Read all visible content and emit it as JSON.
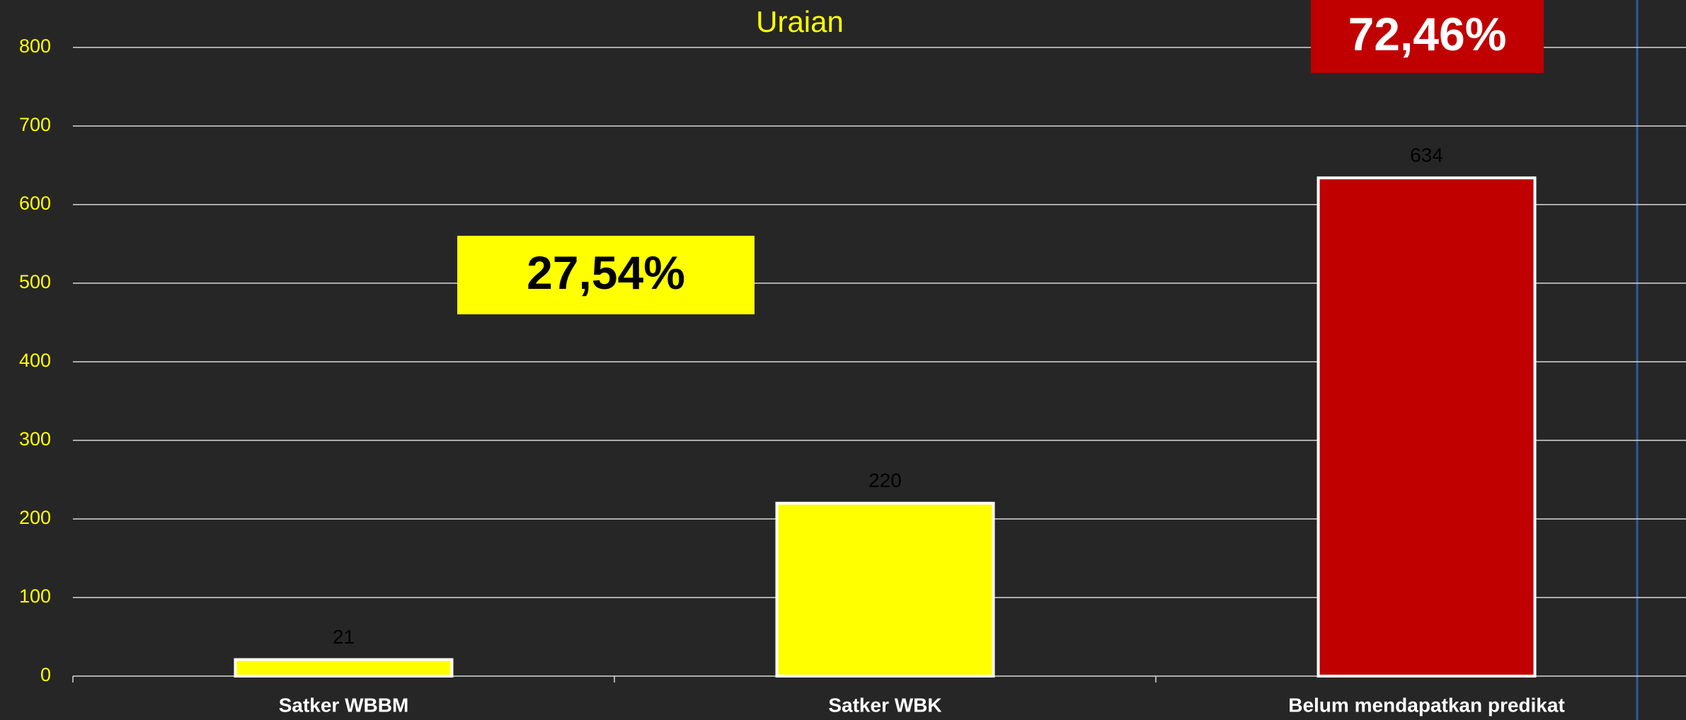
{
  "chart_data": {
    "type": "bar",
    "title": "Uraian",
    "categories": [
      "Satker WBBM",
      "Satker WBK",
      "Belum mendapatkan predikat"
    ],
    "values": [
      21,
      220,
      634
    ],
    "colors": [
      "#ffff00",
      "#ffff00",
      "#c00000"
    ],
    "ylim": [
      0,
      800
    ],
    "yticks": [
      0,
      100,
      200,
      300,
      400,
      500,
      600,
      700,
      800
    ],
    "grid": true,
    "annotations": [
      "27,54%",
      "72,46%"
    ]
  }
}
